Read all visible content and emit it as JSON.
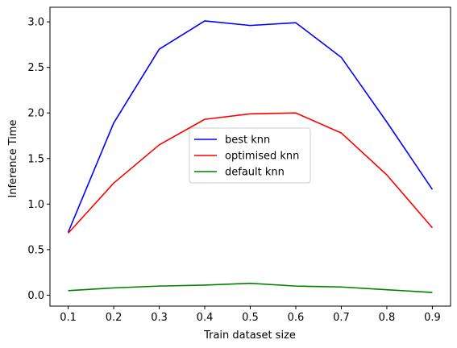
{
  "chart_data": {
    "type": "line",
    "title": "",
    "xlabel": "Train dataset size",
    "ylabel": "Inference Time",
    "x": [
      0.1,
      0.2,
      0.3,
      0.4,
      0.5,
      0.6,
      0.7,
      0.8,
      0.9
    ],
    "x_tick_labels": [
      "0.1",
      "0.2",
      "0.3",
      "0.4",
      "0.5",
      "0.6",
      "0.7",
      "0.8",
      "0.9"
    ],
    "y_ticks": [
      0.0,
      0.5,
      1.0,
      1.5,
      2.0,
      2.5,
      3.0
    ],
    "y_tick_labels": [
      "0.0",
      "0.5",
      "1.0",
      "1.5",
      "2.0",
      "2.5",
      "3.0"
    ],
    "xlim": [
      0.06,
      0.94
    ],
    "ylim": [
      -0.12,
      3.16
    ],
    "grid": false,
    "legend_placement": "center",
    "series": [
      {
        "name": "best knn",
        "color": "#0000ff",
        "values": [
          0.69,
          1.89,
          2.7,
          3.01,
          2.96,
          2.99,
          2.61,
          1.9,
          1.16
        ]
      },
      {
        "name": "optimised knn",
        "color": "#ff0000",
        "values": [
          0.68,
          1.23,
          1.65,
          1.93,
          1.99,
          2.0,
          1.78,
          1.32,
          0.74
        ]
      },
      {
        "name": "default knn",
        "color": "#008000",
        "values": [
          0.05,
          0.08,
          0.1,
          0.11,
          0.13,
          0.1,
          0.09,
          0.06,
          0.03
        ]
      }
    ]
  }
}
